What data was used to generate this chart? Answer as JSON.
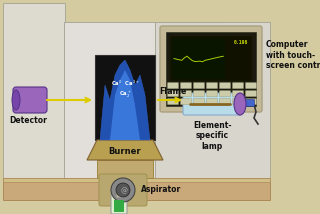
{
  "bg_outer": "#d4cba0",
  "bg_left_wall": "#dddbd0",
  "bg_center_wall": "#e2dfda",
  "bg_right_wall": "#d8d5cc",
  "bench_color": "#c9a87a",
  "bench_edge": "#b08858",
  "burner_box_color": "#111111",
  "burner_top_color": "#b8a050",
  "burner_base_color": "#c0aa70",
  "aspirator_color": "#999999",
  "aspirator_dark": "#555555",
  "detector_color": "#9966bb",
  "detector_dark": "#7744aa",
  "lamp_glass_color": "#b8dde8",
  "lamp_body_color": "#9966bb",
  "monitor_frame": "#c4ba98",
  "monitor_bezel": "#aaa080",
  "monitor_screen_bg": "#111100",
  "monitor_graph_bg": "#1a1a00",
  "monitor_line_color": "#aacc00",
  "monitor_readout": "#ccdd00",
  "arrow_color": "#ddcc00",
  "floor_color": "#c8a870",
  "vial_color": "#33aa44",
  "text_color": "#111111",
  "labels": {
    "detector": "Detector",
    "burner": "Burner",
    "flame": "Flame",
    "aspirator": "Aspirator",
    "lamp": "Element-\nspecific\nlamp",
    "computer": "Computer\nwith touch-\nscreen control"
  }
}
